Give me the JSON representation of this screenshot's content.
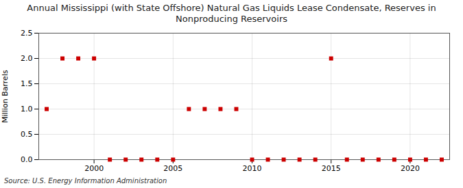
{
  "chart_data": {
    "type": "scatter",
    "title": "Annual Mississippi (with State Offshore) Natural Gas Liquids Lease Condensate, Reserves in\nNonproducing Reservoirs",
    "ylabel": "Million Barrels",
    "source": "Source: U.S. Energy Information Administration",
    "x": [
      1997,
      1998,
      1999,
      2000,
      2001,
      2002,
      2003,
      2004,
      2005,
      2006,
      2007,
      2008,
      2009,
      2010,
      2011,
      2012,
      2013,
      2014,
      2015,
      2016,
      2017,
      2018,
      2019,
      2020,
      2021,
      2022
    ],
    "values": [
      1.0,
      2.0,
      2.0,
      2.0,
      0.0,
      0.0,
      0.0,
      0.0,
      0.0,
      1.0,
      1.0,
      1.0,
      1.0,
      0.0,
      0.0,
      0.0,
      0.0,
      0.0,
      2.0,
      0.0,
      0.0,
      0.0,
      0.0,
      0.0,
      0.0,
      0.0
    ],
    "color": "#cc0000",
    "marker": "square",
    "xlim": [
      1996.5,
      2022.5
    ],
    "xticks": [
      2000,
      2005,
      2010,
      2015,
      2020
    ],
    "ylim": [
      0.0,
      2.5
    ],
    "yticks": [
      {
        "value": 0.0,
        "label": "0.0"
      },
      0.5,
      {
        "value": 1.0,
        "label": "1.0"
      },
      1.5,
      {
        "value": 2.0,
        "label": "2.0"
      },
      2.5
    ],
    "grid": true
  }
}
